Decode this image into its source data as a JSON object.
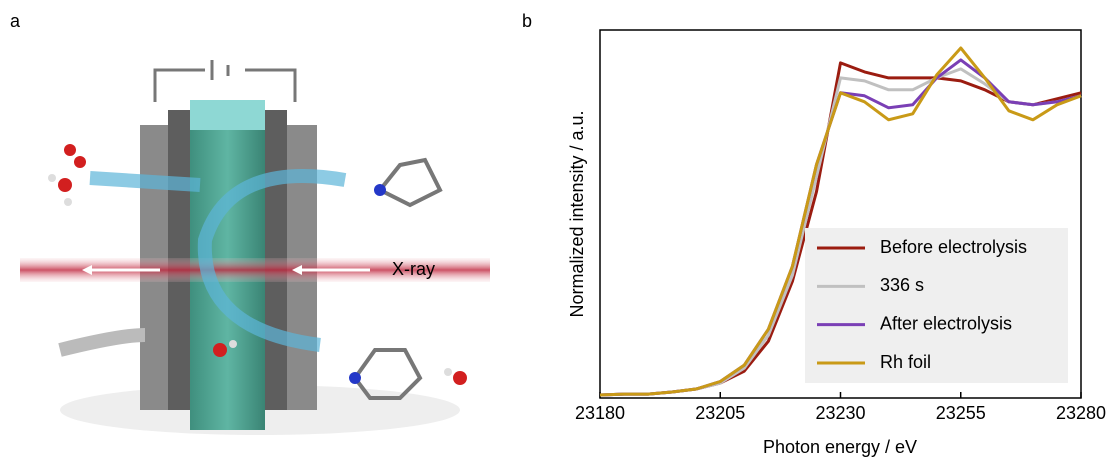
{
  "panel_a": {
    "label": "a",
    "annotation": "X-ray"
  },
  "panel_b": {
    "label": "b"
  },
  "chart_data": {
    "type": "line",
    "xlabel": "Photon energy / eV",
    "ylabel": "Normalized intensity / a.u.",
    "x": [
      23180,
      23185,
      23190,
      23195,
      23200,
      23205,
      23210,
      23215,
      23220,
      23225,
      23230,
      23235,
      23240,
      23245,
      23250,
      23255,
      23260,
      23265,
      23270,
      23275,
      23280
    ],
    "xlim": [
      23180,
      23280
    ],
    "xticks": [
      23180,
      23205,
      23230,
      23255,
      23280
    ],
    "ylim": [
      -0.01,
      1.22
    ],
    "legend": "lower right",
    "series": [
      {
        "name": "Before electrolysis",
        "color": "#9b1c10",
        "values": [
          0,
          0.003,
          0.003,
          0.01,
          0.02,
          0.04,
          0.08,
          0.18,
          0.38,
          0.68,
          1.11,
          1.08,
          1.06,
          1.06,
          1.06,
          1.05,
          1.02,
          0.98,
          0.97,
          0.99,
          1.01
        ]
      },
      {
        "name": "336 s",
        "color": "#c0c0c0",
        "values": [
          0,
          0.003,
          0.003,
          0.01,
          0.02,
          0.04,
          0.09,
          0.2,
          0.4,
          0.73,
          1.06,
          1.05,
          1.02,
          1.02,
          1.06,
          1.09,
          1.04,
          0.98,
          0.97,
          0.98,
          1.0
        ]
      },
      {
        "name": "After electrolysis",
        "color": "#7a3fb5",
        "values": [
          0,
          0.003,
          0.003,
          0.01,
          0.02,
          0.045,
          0.1,
          0.22,
          0.43,
          0.77,
          1.01,
          1.0,
          0.96,
          0.97,
          1.06,
          1.12,
          1.06,
          0.98,
          0.97,
          0.98,
          1.0
        ]
      },
      {
        "name": "Rh foil",
        "color": "#c99a17",
        "values": [
          0,
          0.003,
          0.003,
          0.01,
          0.02,
          0.045,
          0.1,
          0.22,
          0.43,
          0.77,
          1.01,
          0.98,
          0.92,
          0.94,
          1.07,
          1.16,
          1.06,
          0.95,
          0.92,
          0.97,
          1.0
        ]
      }
    ]
  }
}
